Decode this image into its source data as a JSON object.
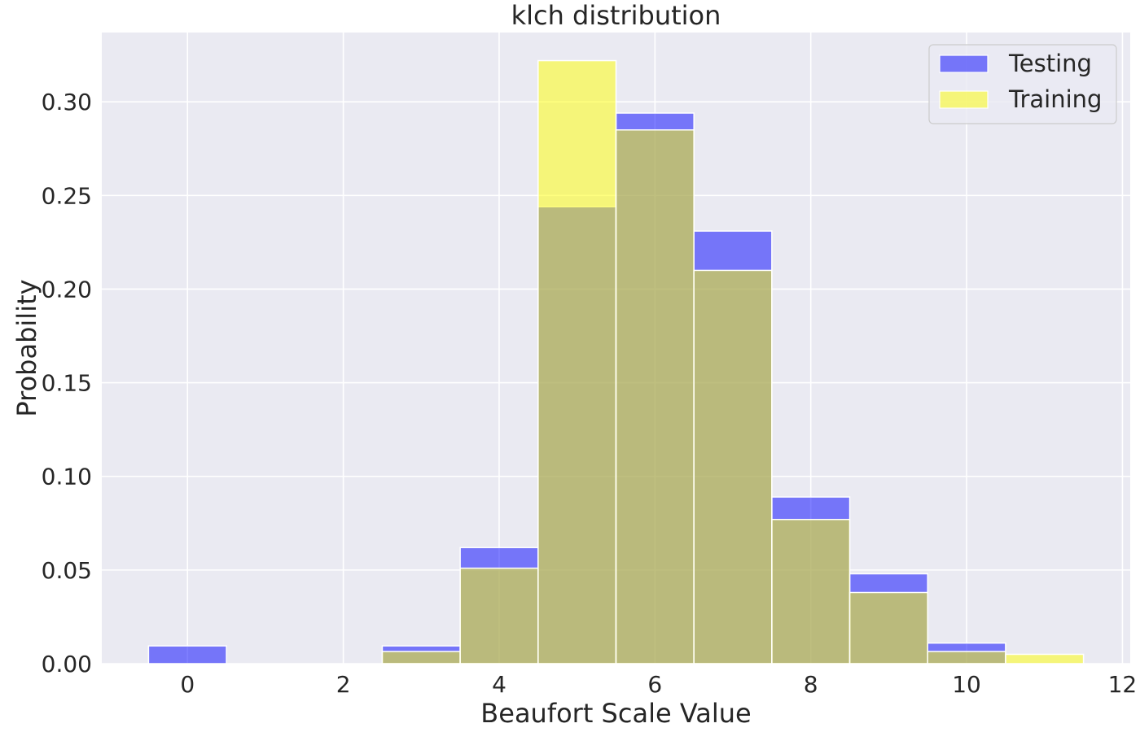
{
  "chart_data": {
    "type": "bar",
    "title": "klch distribution",
    "xlabel": "Beaufort Scale Value",
    "ylabel": "Probability",
    "xlim": [
      -1.1,
      12.1
    ],
    "ylim": [
      0,
      0.337
    ],
    "xticks": [
      0,
      2,
      4,
      6,
      8,
      10,
      12
    ],
    "xtick_labels": [
      "0",
      "2",
      "4",
      "6",
      "8",
      "10",
      "12"
    ],
    "yticks": [
      0.0,
      0.05,
      0.1,
      0.15,
      0.2,
      0.25,
      0.3
    ],
    "ytick_labels": [
      "0.00",
      "0.05",
      "0.10",
      "0.15",
      "0.20",
      "0.25",
      "0.30"
    ],
    "bins": [
      0,
      1,
      2,
      3,
      4,
      5,
      6,
      7,
      8,
      9,
      10,
      11
    ],
    "bin_width": 1,
    "grid": true,
    "legend_position": "top-right",
    "series": [
      {
        "name": "Testing",
        "color": "#0000ff",
        "opacity": 0.5,
        "values": [
          0.0095,
          0,
          0,
          0.0095,
          0.062,
          0.244,
          0.294,
          0.231,
          0.089,
          0.048,
          0.011,
          0
        ]
      },
      {
        "name": "Training",
        "color": "#ffff00",
        "opacity": 0.5,
        "values": [
          0,
          0,
          0,
          0.0065,
          0.051,
          0.322,
          0.285,
          0.21,
          0.077,
          0.038,
          0.0065,
          0.005
        ]
      }
    ],
    "colors": {
      "background": "#eaeaf2",
      "grid": "#ffffff",
      "text": "#262626",
      "legend_frame": "#cccccc"
    }
  }
}
